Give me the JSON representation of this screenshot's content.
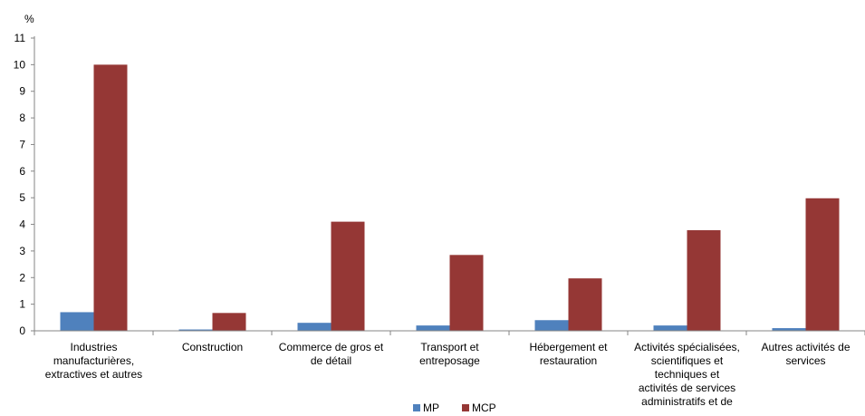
{
  "chart_data": {
    "type": "bar",
    "title": "",
    "xlabel": "",
    "ylabel": "%",
    "ylim": [
      0,
      11
    ],
    "yticks": [
      0,
      1,
      2,
      3,
      4,
      5,
      6,
      7,
      8,
      9,
      10,
      11
    ],
    "grid": false,
    "legend_position": "bottom",
    "categories": [
      [
        "Industries",
        "manufacturières,",
        "extractives et autres"
      ],
      [
        "Construction"
      ],
      [
        "Commerce de gros et",
        "de détail"
      ],
      [
        "Transport et",
        "entreposage"
      ],
      [
        "Hébergement et",
        "restauration"
      ],
      [
        "Activités spécialisées,",
        "scientifiques et",
        "techniques et",
        "activités de services",
        "administratifs et de"
      ],
      [
        "Autres activités de",
        "services"
      ]
    ],
    "series": [
      {
        "name": "MP",
        "color": "#4F81BD",
        "values": [
          0.7,
          0.05,
          0.3,
          0.2,
          0.4,
          0.2,
          0.1
        ]
      },
      {
        "name": "MCP",
        "color": "#953735",
        "values": [
          10.0,
          0.67,
          4.1,
          2.85,
          1.97,
          3.78,
          4.98
        ]
      }
    ]
  }
}
